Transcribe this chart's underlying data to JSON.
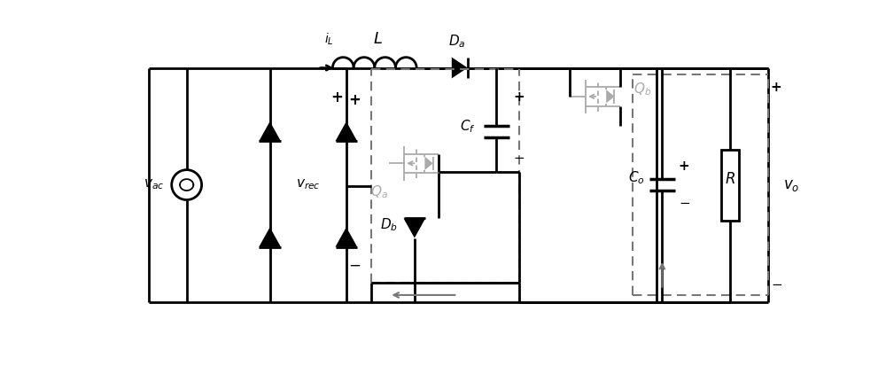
{
  "fig_width": 10.0,
  "fig_height": 4.13,
  "dpi": 100,
  "bg_color": "#ffffff",
  "black": "#000000",
  "gray": "#aaaaaa",
  "dark_gray": "#777777",
  "line_width": 2.0,
  "thin_line": 1.3,
  "xlim": [
    0,
    10
  ],
  "ylim": [
    0,
    4.13
  ]
}
